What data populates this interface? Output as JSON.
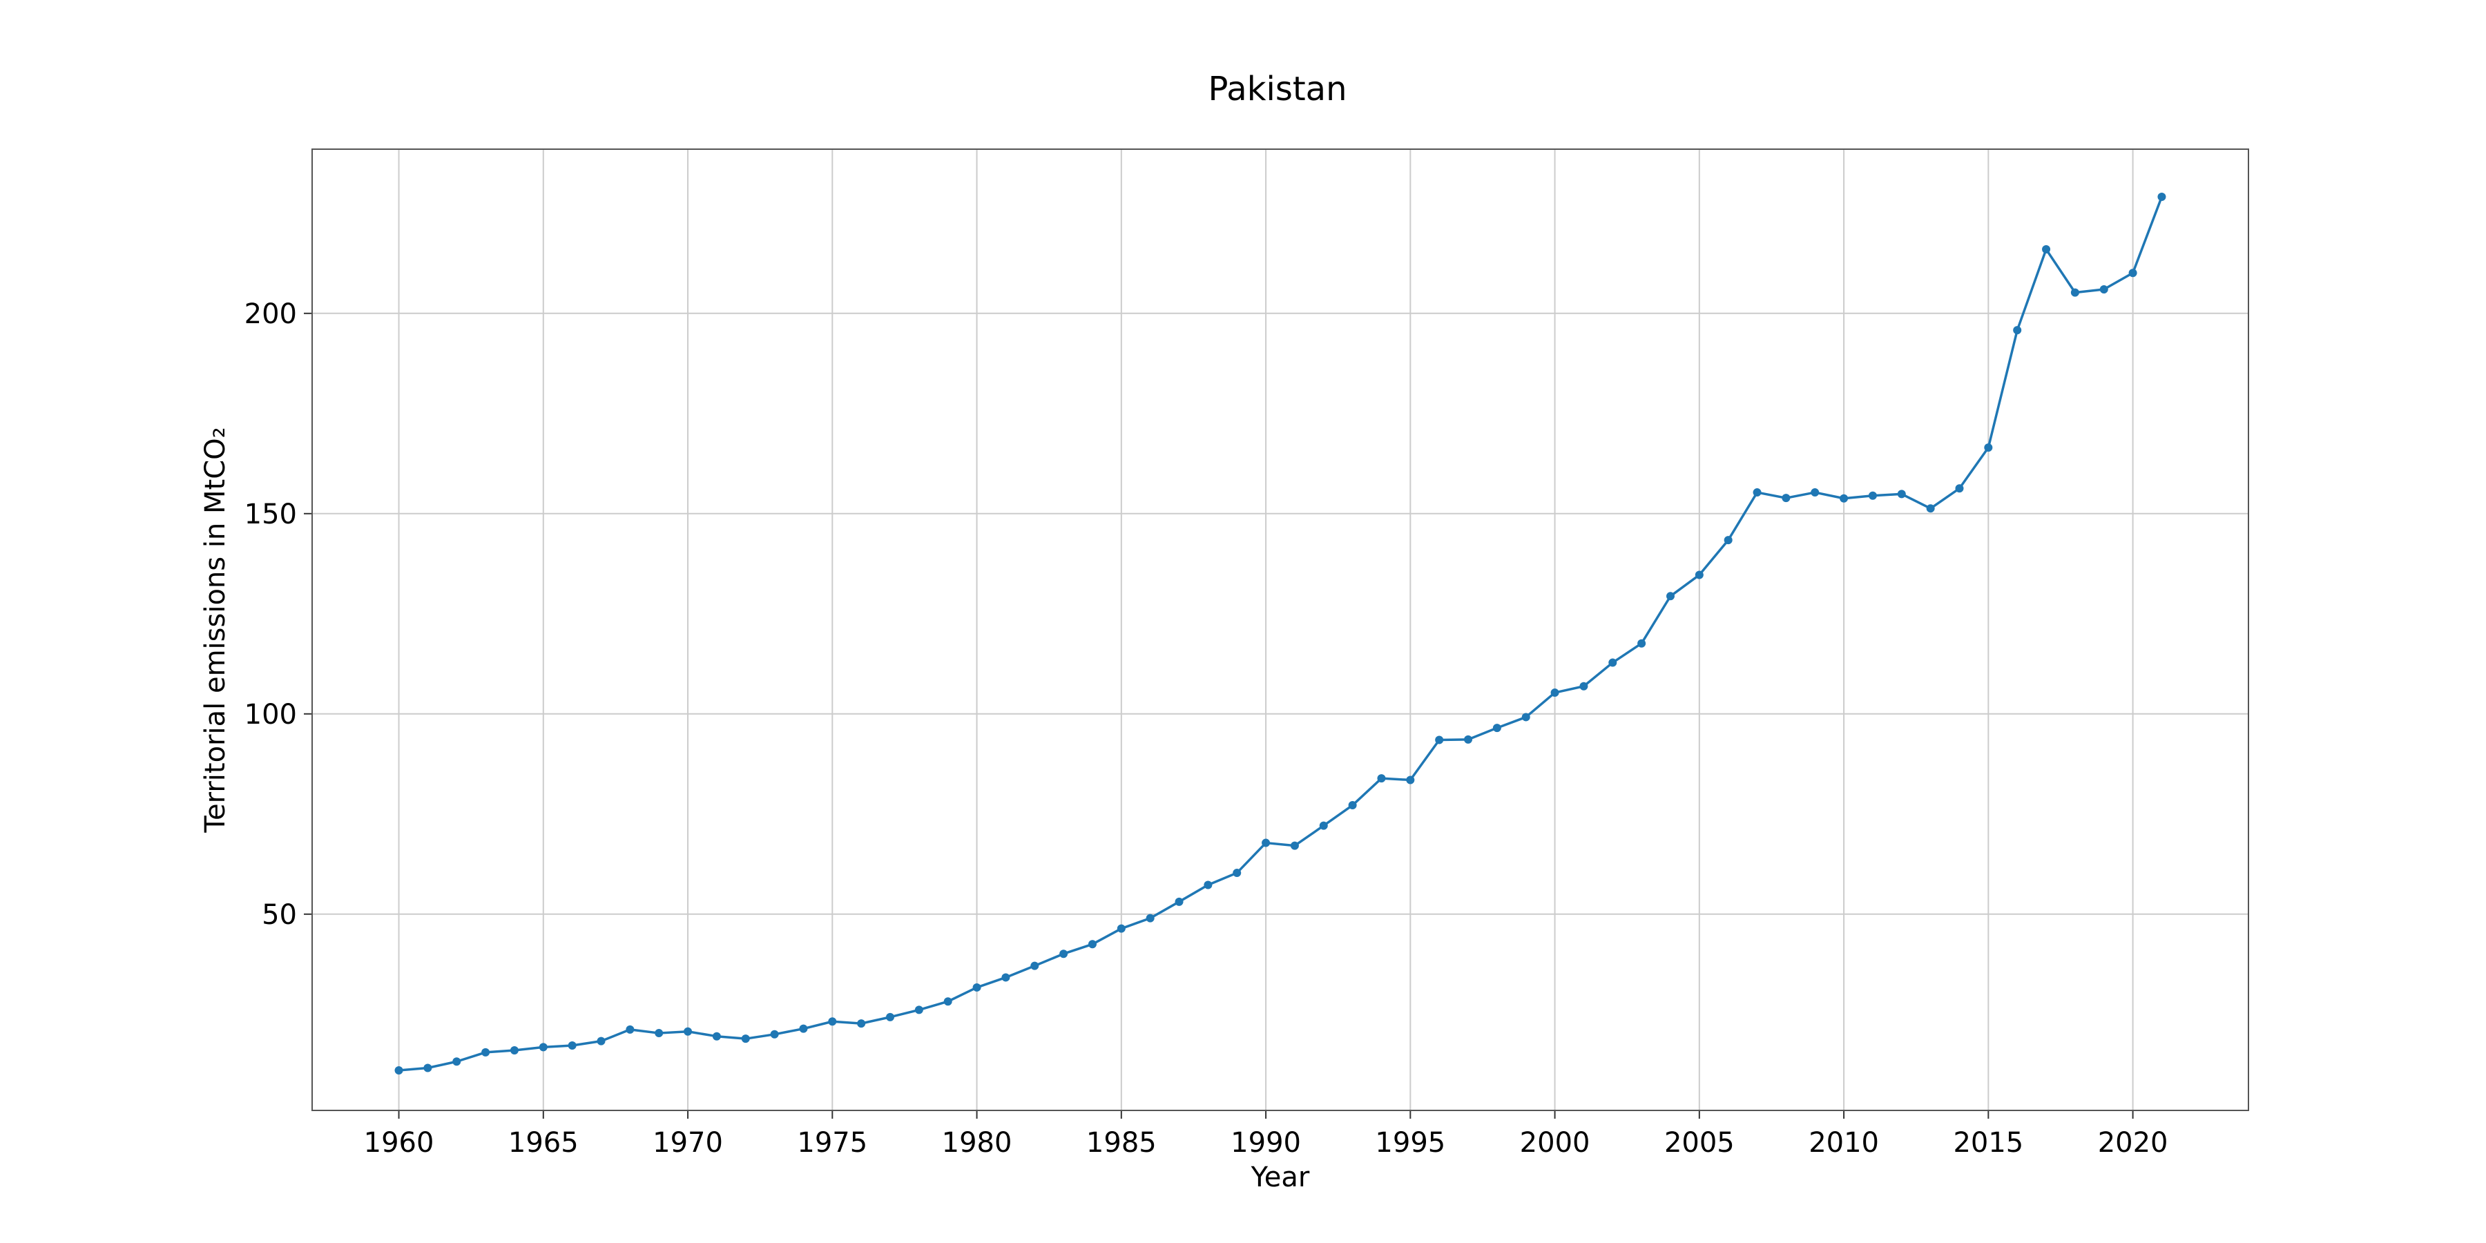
{
  "chart_data": {
    "type": "line",
    "title": "Pakistan",
    "xlabel": "Year",
    "ylabel": "Territorial emissions in MtCO₂",
    "xlim": [
      1957,
      2024
    ],
    "ylim": [
      1,
      241
    ],
    "xticks": [
      1960,
      1965,
      1970,
      1975,
      1980,
      1985,
      1990,
      1995,
      2000,
      2005,
      2010,
      2015,
      2020
    ],
    "yticks": [
      50,
      100,
      150,
      200
    ],
    "grid": true,
    "color": "#1f77b4",
    "marker": "circle",
    "x": [
      1960,
      1961,
      1962,
      1963,
      1964,
      1965,
      1966,
      1967,
      1968,
      1969,
      1970,
      1971,
      1972,
      1973,
      1974,
      1975,
      1976,
      1977,
      1978,
      1979,
      1980,
      1981,
      1982,
      1983,
      1984,
      1985,
      1986,
      1987,
      1988,
      1989,
      1990,
      1991,
      1992,
      1993,
      1994,
      1995,
      1996,
      1997,
      1998,
      1999,
      2000,
      2001,
      2002,
      2003,
      2004,
      2005,
      2006,
      2007,
      2008,
      2009,
      2010,
      2011,
      2012,
      2013,
      2014,
      2015,
      2016,
      2017,
      2018,
      2019,
      2020,
      2021
    ],
    "series": [
      {
        "values": [
          11.0,
          11.6,
          13.2,
          15.5,
          16.0,
          16.8,
          17.2,
          18.3,
          21.2,
          20.3,
          20.7,
          19.5,
          18.9,
          20.0,
          21.4,
          23.2,
          22.7,
          24.3,
          26.1,
          28.2,
          31.7,
          34.2,
          37.1,
          40.1,
          42.5,
          46.4,
          49.0,
          53.1,
          57.3,
          60.3,
          67.8,
          67.1,
          72.1,
          77.2,
          83.9,
          83.5,
          93.5,
          93.6,
          96.5,
          99.2,
          105.3,
          106.9,
          112.8,
          117.6,
          129.4,
          134.7,
          143.4,
          155.3,
          153.9,
          155.3,
          153.8,
          154.5,
          154.9,
          151.3,
          156.3,
          166.5,
          195.8,
          216.0,
          205.2,
          206.0,
          210.1,
          229.1
        ]
      }
    ]
  }
}
